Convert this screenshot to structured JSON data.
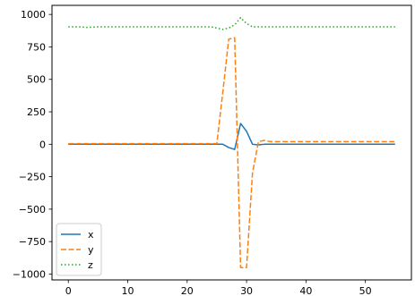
{
  "chart_data": {
    "type": "line",
    "title": "",
    "xlabel": "",
    "ylabel": "",
    "xlim": [
      -2.75,
      57.75
    ],
    "ylim": [
      -1045,
      1070
    ],
    "xticks": [
      0,
      10,
      20,
      30,
      40,
      50
    ],
    "yticks": [
      -1000,
      -750,
      -500,
      -250,
      0,
      250,
      500,
      750,
      1000
    ],
    "grid": false,
    "legend_position": "lower-left",
    "x": [
      0,
      1,
      2,
      3,
      4,
      5,
      6,
      7,
      8,
      9,
      10,
      11,
      12,
      13,
      14,
      15,
      16,
      17,
      18,
      19,
      20,
      21,
      22,
      23,
      24,
      25,
      26,
      27,
      28,
      29,
      30,
      31,
      32,
      33,
      34,
      35,
      36,
      37,
      38,
      39,
      40,
      41,
      42,
      43,
      44,
      45,
      46,
      47,
      48,
      49,
      50,
      51,
      52,
      53,
      54,
      55
    ],
    "series": [
      {
        "name": "x",
        "color": "#1f77b4",
        "style": "solid",
        "values": [
          0,
          0,
          0,
          0,
          0,
          0,
          0,
          0,
          0,
          0,
          0,
          0,
          0,
          0,
          0,
          0,
          0,
          0,
          0,
          0,
          0,
          0,
          0,
          0,
          0,
          0,
          0,
          -25,
          -40,
          160,
          100,
          0,
          -5,
          0,
          0,
          0,
          0,
          0,
          0,
          0,
          0,
          0,
          0,
          0,
          0,
          0,
          0,
          0,
          0,
          0,
          0,
          0,
          0,
          0,
          0,
          0
        ]
      },
      {
        "name": "y",
        "color": "#ff7f0e",
        "style": "dashed",
        "values": [
          5,
          5,
          5,
          5,
          5,
          5,
          5,
          5,
          5,
          5,
          5,
          5,
          5,
          5,
          5,
          5,
          5,
          5,
          5,
          5,
          5,
          5,
          5,
          5,
          5,
          5,
          400,
          810,
          820,
          -950,
          -950,
          -220,
          20,
          30,
          20,
          20,
          20,
          20,
          20,
          20,
          20,
          20,
          20,
          20,
          20,
          20,
          20,
          20,
          20,
          20,
          20,
          20,
          20,
          20,
          20,
          20
        ]
      },
      {
        "name": "z",
        "color": "#2ca02c",
        "style": "dotted",
        "values": [
          905,
          905,
          905,
          900,
          902,
          905,
          905,
          905,
          905,
          905,
          905,
          905,
          905,
          905,
          905,
          905,
          905,
          905,
          905,
          905,
          905,
          905,
          905,
          905,
          905,
          895,
          885,
          895,
          920,
          975,
          930,
          905,
          905,
          905,
          905,
          905,
          905,
          905,
          905,
          905,
          905,
          905,
          905,
          905,
          905,
          905,
          905,
          905,
          905,
          905,
          905,
          905,
          905,
          905,
          905,
          905
        ]
      }
    ]
  }
}
